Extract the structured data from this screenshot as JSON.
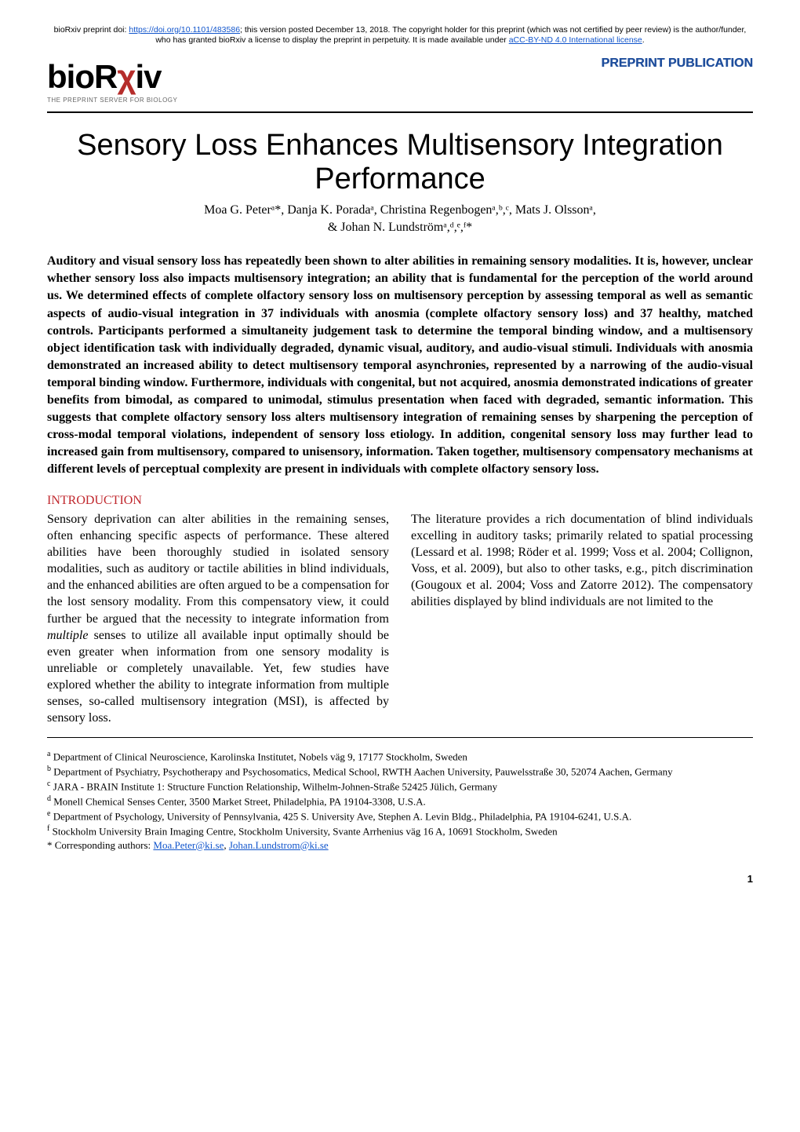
{
  "disclaimer": {
    "text_before_doi": "bioRxiv preprint doi: ",
    "doi_url": "https://doi.org/10.1101/483586",
    "text_mid": "; this version posted December 13, 2018. The copyright holder for this preprint (which was not certified by peer review) is the author/funder, who has granted bioRxiv a license to display the preprint in perpetuity. It is made available under ",
    "license_label": "aCC-BY-ND 4.0 International license",
    "text_end": "."
  },
  "header": {
    "logo_main": "bioR",
    "logo_chi": "χ",
    "logo_tail": "iv",
    "logo_sub": "THE PREPRINT SERVER FOR BIOLOGY",
    "preprint_label": "PREPRINT PUBLICATION"
  },
  "title": "Sensory Loss Enhances Multisensory Integration Performance",
  "authors_line1": "Moa G. Peterᵃ*, Danja K. Poradaᵃ, Christina Regenbogenᵃ,ᵇ,ᶜ, Mats J. Olssonᵃ,",
  "authors_line2": "& Johan N. Lundströmᵃ,ᵈ,ᵉ,ᶠ*",
  "abstract": "Auditory and visual sensory loss has repeatedly been shown to alter abilities in remaining sensory modalities. It is, however, unclear whether sensory loss also impacts multisensory integration; an ability that is fundamental for the perception of the world around us. We determined effects of complete olfactory sensory loss on multisensory perception by assessing temporal as well as semantic aspects of audio-visual integration in 37 individuals with anosmia (complete olfactory sensory loss) and 37 healthy, matched controls. Participants performed a simultaneity judgement task to determine the temporal binding window, and a multisensory object identification task with individually degraded, dynamic visual, auditory, and audio-visual stimuli. Individuals with anosmia demonstrated an increased ability to detect multisensory temporal asynchronies, represented by a narrowing of the audio-visual temporal binding window. Furthermore, individuals with congenital, but not acquired, anosmia demonstrated indications of greater benefits from bimodal, as compared to unimodal, stimulus presentation when faced with degraded, semantic information. This suggests that complete olfactory sensory loss alters multisensory integration of remaining senses by sharpening the perception of cross-modal temporal violations, independent of sensory loss etiology. In addition, congenital sensory loss may further lead to increased gain from multisensory, compared to unisensory, information. Taken together, multisensory compensatory mechanisms at different levels of perceptual complexity are present in individuals with complete olfactory sensory loss.",
  "section_heading": "INTRODUCTION",
  "intro": {
    "p1_a": "Sensory deprivation can alter abilities in the remaining senses, often enhancing specific aspects of performance. These altered abilities have been thoroughly studied in isolated sensory modalities, such as auditory or tactile abilities in blind individuals, and the enhanced abilities are often argued to be a compensation for the lost sensory modality. From this compensatory view, it could further be argued that the necessity to integrate information from ",
    "p1_em": "multiple",
    "p1_b": " senses to utilize all available input optimally should be even greater when information from one sensory modality is unreliable or completely unavailable. Yet, few studies have explored whether the ability to integrate information from multiple senses, so-called multisensory integration (MSI), is affected by sensory loss.",
    "p2": "The literature provides a rich documentation of blind individuals excelling in auditory tasks; primarily related to spatial processing (Lessard et al. 1998; Röder et al. 1999; Voss et al. 2004; Collignon, Voss, et al. 2009), but also to other tasks, e.g., pitch discrimination (Gougoux et al. 2004; Voss and Zatorre 2012). The compensatory abilities displayed by blind individuals are not limited to the"
  },
  "affiliations": {
    "a": "Department of Clinical Neuroscience, Karolinska Institutet, Nobels väg 9, 17177 Stockholm, Sweden",
    "b": "Department of Psychiatry, Psychotherapy and Psychosomatics, Medical School, RWTH    Aachen University, Pauwelsstraße 30, 52074 Aachen, Germany",
    "c": "JARA - BRAIN Institute 1: Structure Function Relationship, Wilhelm-Johnen-Straße 52425 Jülich, Germany",
    "d": "Monell Chemical Senses Center, 3500 Market Street, Philadelphia, PA 19104-3308, U.S.A.",
    "e": "Department of Psychology, University of Pennsylvania, 425 S. University Ave, Stephen A. Levin Bldg., Philadelphia, PA 19104-6241, U.S.A.",
    "f": "Stockholm University Brain Imaging Centre, Stockholm University, Svante Arrhenius väg 16 A, 10691 Stockholm, Sweden",
    "star_prefix": "* Corresponding authors: ",
    "email1": "Moa.Peter@ki.se",
    "sep": ", ",
    "email2": "Johan.Lundstrom@ki.se"
  },
  "page_number": "1",
  "colors": {
    "link": "#1155cc",
    "brand_red": "#b52d2b",
    "heading_red": "#c0272d",
    "preprint_blue": "#1f4e9c"
  }
}
